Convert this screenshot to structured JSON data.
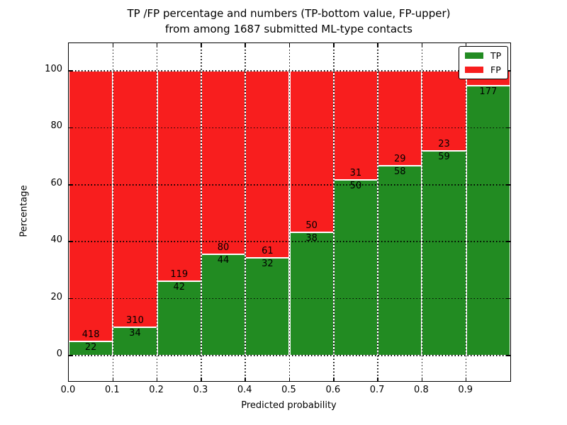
{
  "title": {
    "line1": "TP /FP percentage and numbers (TP-bottom value, FP-upper)",
    "line2": "from among 1687 submitted ML-type contacts"
  },
  "axes": {
    "xlabel": "Predicted probability",
    "ylabel": "Percentage",
    "x_tick_labels": [
      "0.0",
      "0.1",
      "0.2",
      "0.3",
      "0.4",
      "0.5",
      "0.6",
      "0.7",
      "0.8",
      "0.9"
    ],
    "y_tick_labels": [
      "0",
      "20",
      "40",
      "60",
      "80",
      "100"
    ],
    "xlim": [
      0.0,
      1.0
    ],
    "ylim": [
      -9,
      110
    ],
    "grid": "dotted black, horizontal every 20, vertical every 0.1"
  },
  "legend": {
    "position": "upper-right",
    "entries": [
      {
        "label": "TP",
        "color": "#228B22"
      },
      {
        "label": "FP",
        "color": "#F81E1E"
      }
    ]
  },
  "colors": {
    "tp": "#228B22",
    "fp": "#F81E1E",
    "grid": "#000000",
    "background": "#FFFFFF"
  },
  "chart_data": {
    "type": "bar",
    "stacked": true,
    "value_unit": "percent of bin total (segments sum to 100)",
    "categories": [
      "0.0-0.1",
      "0.1-0.2",
      "0.2-0.3",
      "0.3-0.4",
      "0.4-0.5",
      "0.5-0.6",
      "0.6-0.7",
      "0.7-0.8",
      "0.8-0.9",
      "0.9-1.0"
    ],
    "series": [
      {
        "name": "TP",
        "counts": [
          22,
          34,
          42,
          44,
          32,
          38,
          50,
          58,
          59,
          177
        ],
        "pct": [
          5.0,
          9.9,
          26.1,
          35.5,
          34.4,
          43.2,
          61.7,
          66.7,
          72.0,
          94.7
        ]
      },
      {
        "name": "FP",
        "counts": [
          418,
          310,
          119,
          80,
          61,
          50,
          31,
          29,
          23,
          null
        ],
        "pct": [
          95.0,
          90.1,
          73.9,
          64.5,
          65.6,
          56.8,
          38.3,
          33.3,
          28.0,
          5.3
        ]
      }
    ],
    "bar_labels": {
      "tp": [
        "22",
        "34",
        "42",
        "44",
        "32",
        "38",
        "50",
        "58",
        "59",
        "177"
      ],
      "fp": [
        "418",
        "310",
        "119",
        "80",
        "61",
        "50",
        "31",
        "29",
        "23",
        ""
      ]
    }
  }
}
